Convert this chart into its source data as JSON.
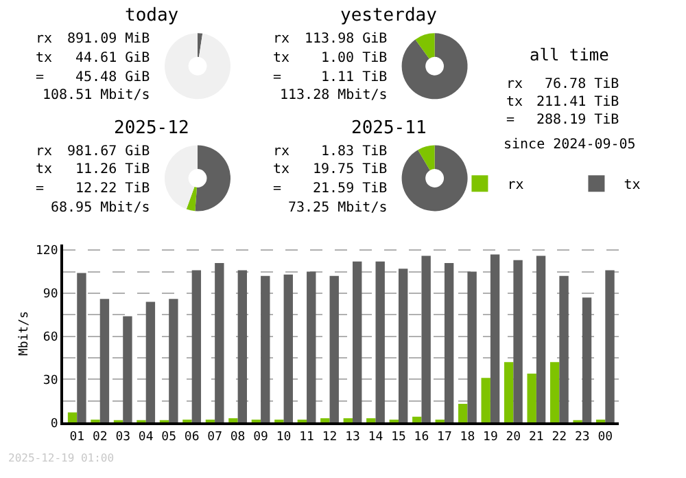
{
  "chart_data": [
    {
      "type": "donut",
      "title": "today",
      "categories": [
        null,
        null,
        null
      ],
      "values": [
        2.4,
        null,
        97.6
      ],
      "colors": [
        "#606060",
        "#7fc300",
        "#f0f0f0"
      ],
      "annotations": [
        "rx 891.09 MiB",
        "tx 44.61 GiB",
        "= 45.48 GiB",
        "108.51 Mbit/s"
      ]
    },
    {
      "type": "donut",
      "title": "yesterday",
      "categories": [
        null,
        null,
        null
      ],
      "values": [
        90,
        10,
        0
      ],
      "colors": [
        "#606060",
        "#7fc300",
        "#f0f0f0"
      ],
      "annotations": [
        "rx 113.98 GiB",
        "tx 1.00 TiB",
        "= 1.11 TiB",
        "113.28 Mbit/s"
      ]
    },
    {
      "type": "donut",
      "title": "2025-12",
      "categories": [
        null,
        null,
        null
      ],
      "values": [
        51.2,
        4.3,
        44.5
      ],
      "colors": [
        "#606060",
        "#7fc300",
        "#f0f0f0"
      ],
      "annotations": [
        "rx 981.67 GiB",
        "tx 11.26 TiB",
        "= 12.22 TiB",
        "68.95 Mbit/s"
      ]
    },
    {
      "type": "donut",
      "title": "2025-11",
      "categories": [
        null,
        null,
        null
      ],
      "values": [
        91.5,
        8.5,
        0
      ],
      "colors": [
        "#606060",
        "#7fc300",
        "#f0f0f0"
      ],
      "annotations": [
        "rx 1.83 TiB",
        "tx 19.75 TiB",
        "= 21.59 TiB",
        "73.25 Mbit/s"
      ]
    },
    {
      "type": "other",
      "title": "all time",
      "annotations": [
        "rx 76.78 TiB",
        "tx 211.41 TiB",
        "= 288.19 TiB",
        "since 2024-09-05"
      ]
    },
    {
      "type": "bar",
      "ylabel": "Mbit/s",
      "categories": [
        "01",
        "02",
        "03",
        "04",
        "05",
        "06",
        "07",
        "08",
        "09",
        "10",
        "11",
        "12",
        "13",
        "14",
        "15",
        "16",
        "17",
        "18",
        "19",
        "20",
        "21",
        "22",
        "23",
        "00"
      ],
      "series": [
        {
          "name": "rx",
          "color": "#7fc300",
          "values": [
            7,
            2,
            1,
            1,
            1,
            2,
            2,
            3,
            2,
            2,
            2,
            3,
            3,
            3,
            2,
            4,
            2,
            13,
            31,
            42,
            34,
            42,
            1,
            2
          ]
        },
        {
          "name": "tx",
          "color": "#606060",
          "values": [
            104,
            86,
            74,
            84,
            86,
            106,
            111,
            106,
            102,
            103,
            105,
            102,
            112,
            112,
            107,
            116,
            111,
            105,
            117,
            113,
            116,
            102,
            87,
            106
          ]
        }
      ],
      "ylim": [
        0,
        124
      ],
      "yticks": [
        0,
        {
          "value": 15,
          "label": null
        },
        30,
        {
          "value": 45,
          "label": null
        },
        60,
        {
          "value": 75,
          "label": null
        },
        90,
        {
          "value": 105,
          "label": null
        },
        120
      ],
      "grid": "y",
      "legend": "top right",
      "annotations": [
        "2025-12-19 01:00"
      ]
    }
  ]
}
